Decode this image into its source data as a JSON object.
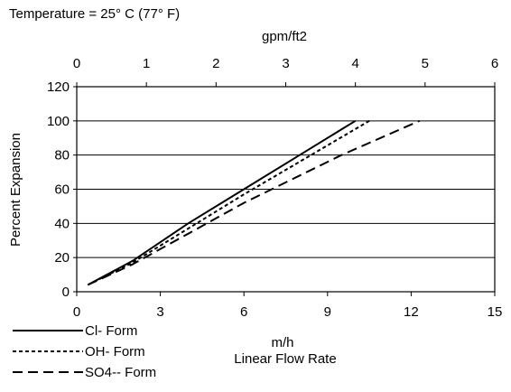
{
  "chart_data": {
    "type": "line",
    "annotation": "Temperature = 25° C (77° F)",
    "xlabel_top": "gpm/ft2",
    "xlabel_bottom_unit": "m/h",
    "xlabel_bottom": "Linear Flow Rate",
    "ylabel": "Percent Expansion",
    "xlim": [
      0,
      15
    ],
    "ylim": [
      0,
      120
    ],
    "x_top_lim": [
      0,
      6
    ],
    "x_ticks": [
      "0",
      "3",
      "6",
      "9",
      "12",
      "15"
    ],
    "x_top_ticks": [
      "0",
      "1",
      "2",
      "3",
      "4",
      "5",
      "6"
    ],
    "y_ticks": [
      "0",
      "20",
      "40",
      "60",
      "80",
      "100",
      "120"
    ],
    "grid": "horizontal",
    "legend_position": "bottom-left, below plot",
    "series": [
      {
        "name": "Cl- Form",
        "style": "solid",
        "points": [
          [
            0.4,
            4
          ],
          [
            2,
            18
          ],
          [
            4,
            40
          ],
          [
            6,
            60
          ],
          [
            8,
            80
          ],
          [
            10,
            100
          ]
        ]
      },
      {
        "name": "OH- Form",
        "style": "dotted",
        "points": [
          [
            0.4,
            4
          ],
          [
            2,
            17
          ],
          [
            4,
            37
          ],
          [
            6,
            57
          ],
          [
            8.3,
            79
          ],
          [
            10.5,
            100
          ]
        ]
      },
      {
        "name": "SO4-- Form",
        "style": "dashed",
        "points": [
          [
            0.4,
            4
          ],
          [
            2,
            16
          ],
          [
            4,
            34
          ],
          [
            6,
            52
          ],
          [
            9.5,
            80
          ],
          [
            12.3,
            100
          ]
        ]
      }
    ]
  }
}
